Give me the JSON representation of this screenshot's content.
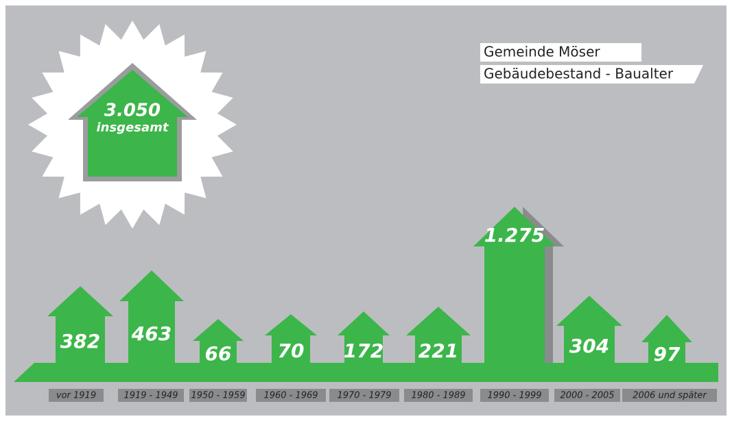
{
  "header": {
    "line1": "Gemeinde Möser",
    "line2": "Gebäudebestand - Baualter"
  },
  "total": {
    "count": "3.050",
    "label": "insgesamt"
  },
  "items": [
    {
      "period": "vor 1919",
      "count": "382"
    },
    {
      "period": "1919 - 1949",
      "count": "463"
    },
    {
      "period": "1950 - 1959",
      "count": "66"
    },
    {
      "period": "1960 - 1969",
      "count": "70"
    },
    {
      "period": "1970 - 1979",
      "count": "172"
    },
    {
      "period": "1980 - 1989",
      "count": "221"
    },
    {
      "period": "1990 - 1999",
      "count": "1.275"
    },
    {
      "period": "2000 - 2005",
      "count": "304"
    },
    {
      "period": "2006 und später",
      "count": "97"
    }
  ]
}
